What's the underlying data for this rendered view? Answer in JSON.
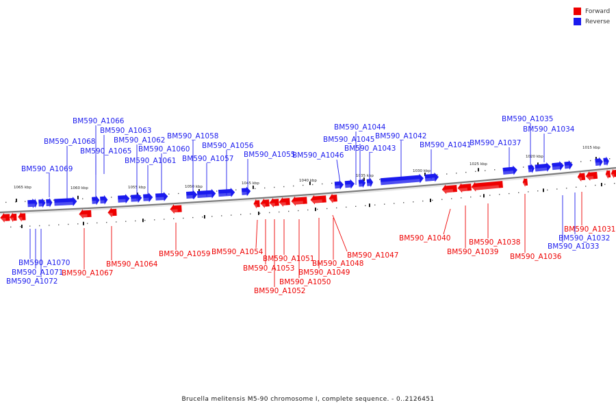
{
  "legend": {
    "forward": {
      "label": "Forward",
      "color": "#ee0000"
    },
    "reverse": {
      "label": "Reverse",
      "color": "#1a1aee"
    }
  },
  "caption": "Brucella melitensis M5-90 chromosome I, complete sequence. - 0..2126451",
  "scale_labels": [
    "1065 kbp",
    "1060 kbp",
    "1055 kbp",
    "1050 kbp",
    "1045 kbp",
    "1040 kbp",
    "1035 kbp",
    "1030 kbp",
    "1025 kbp",
    "1020 kbp",
    "1015 kbp"
  ],
  "genes": [
    {
      "name": "BM590_A1066",
      "strand": "reverse"
    },
    {
      "name": "BM590_A1063",
      "strand": "reverse"
    },
    {
      "name": "BM590_A1068",
      "strand": "reverse"
    },
    {
      "name": "BM590_A1062",
      "strand": "reverse"
    },
    {
      "name": "BM590_A1065",
      "strand": "reverse"
    },
    {
      "name": "BM590_A1060",
      "strand": "reverse"
    },
    {
      "name": "BM590_A1061",
      "strand": "reverse"
    },
    {
      "name": "BM590_A1069",
      "strand": "reverse"
    },
    {
      "name": "BM590_A1058",
      "strand": "reverse"
    },
    {
      "name": "BM590_A1056",
      "strand": "reverse"
    },
    {
      "name": "BM590_A1057",
      "strand": "reverse"
    },
    {
      "name": "BM590_A1055",
      "strand": "reverse"
    },
    {
      "name": "BM590_A1046",
      "strand": "reverse"
    },
    {
      "name": "BM590_A1044",
      "strand": "reverse"
    },
    {
      "name": "BM590_A1045",
      "strand": "reverse"
    },
    {
      "name": "BM590_A1043",
      "strand": "reverse"
    },
    {
      "name": "BM590_A1042",
      "strand": "reverse"
    },
    {
      "name": "BM590_A1041",
      "strand": "reverse"
    },
    {
      "name": "BM590_A1037",
      "strand": "reverse"
    },
    {
      "name": "BM590_A1035",
      "strand": "reverse"
    },
    {
      "name": "BM590_A1034",
      "strand": "reverse"
    },
    {
      "name": "BM590_A1031",
      "strand": "forward"
    },
    {
      "name": "BM590_A1032",
      "strand": "reverse"
    },
    {
      "name": "BM590_A1033",
      "strand": "reverse"
    },
    {
      "name": "BM590_A1036",
      "strand": "forward"
    },
    {
      "name": "BM590_A1040",
      "strand": "forward"
    },
    {
      "name": "BM590_A1038",
      "strand": "forward"
    },
    {
      "name": "BM590_A1039",
      "strand": "forward"
    },
    {
      "name": "BM590_A1047",
      "strand": "forward"
    },
    {
      "name": "BM590_A1048",
      "strand": "forward"
    },
    {
      "name": "BM590_A1049",
      "strand": "forward"
    },
    {
      "name": "BM590_A1050",
      "strand": "forward"
    },
    {
      "name": "BM590_A1051",
      "strand": "forward"
    },
    {
      "name": "BM590_A1052",
      "strand": "forward"
    },
    {
      "name": "BM590_A1053",
      "strand": "forward"
    },
    {
      "name": "BM590_A1054",
      "strand": "forward"
    },
    {
      "name": "BM590_A1059",
      "strand": "forward"
    },
    {
      "name": "BM590_A1064",
      "strand": "forward"
    },
    {
      "name": "BM590_A1067",
      "strand": "forward"
    },
    {
      "name": "BM590_A1070",
      "strand": "reverse"
    },
    {
      "name": "BM590_A1071",
      "strand": "reverse"
    },
    {
      "name": "BM590_A1072",
      "strand": "reverse"
    }
  ]
}
